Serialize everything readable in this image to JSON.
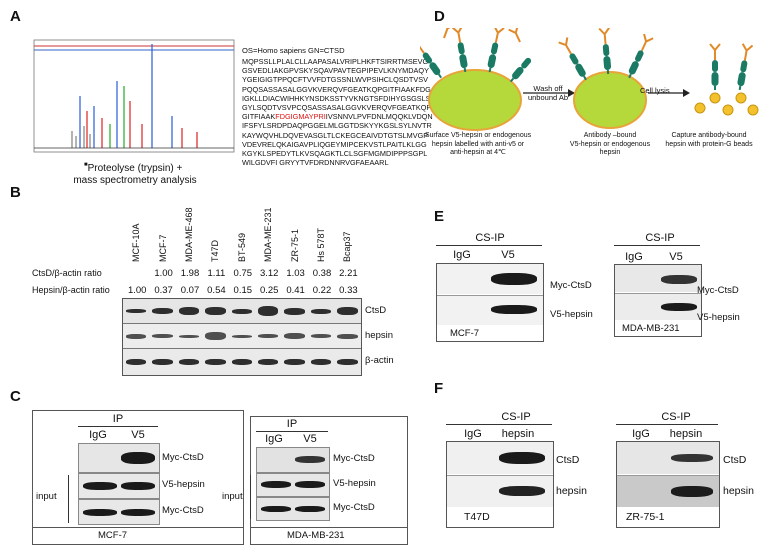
{
  "panels": {
    "A": {
      "label": "A",
      "header": "OS=Homo sapiens GN=CTSD",
      "sequence_lines": [
        "MQPSSLLPLALCLLAAPASALVRIPLHKFTSIRRTMSEVG",
        "GSVEDLIAKGPVSKYSQAVPAVTEGPIPEVLKNYMDAQY",
        "YGEIGIGTPPQCFTVVFDTGSSNLWVPSIHCLQSDTVSV",
        "PQQSASSASALGGVKVERQVFGEATKQPGITFIAAKFDG",
        "IGKLLDIACWIHHKYNSDKSSTYVKNGTSFDIHYGSGSLS",
        "GYLSQDTVSVPCQSASSASALGGVKVERQVFGEATKQP",
        "GITFIAAK",
        "IFSFYLSRDPDAQPGGELMLGGTDSKYYKGSLSYLNVTR",
        "KAYWQVHLDQVEVASGLTLCKEGCEAIVDTGTSLMVGP",
        "VDEVRELQKAIGAVPLIQGEYMIPCEKVSTLPAITLKLGG",
        "KGYKLSPEDYTLKVSQAGKTLCLSGFMGMDIPPPSGPL",
        "WILGDVFI GRYYTVFDRDNNRVGFAEAARL"
      ],
      "hl_line_rest": "IVSNNVLPVFDNLMQQKLVDQN",
      "highlight": "FDGIGMAYPRI",
      "caption_line1": "Proteolyse (trypsin) +",
      "caption_line2": "mass spectrometry analysis"
    },
    "B": {
      "label": "B",
      "cell_lines": [
        "MCF-10A",
        "MCF-7",
        "MDA-ME-468",
        "T47D",
        "BT-549",
        "MDA-ME-231",
        "ZR-75-1",
        "Hs 578T",
        "Bcap37"
      ],
      "ctsd_ratio_label": "CtsD/β-actin ratio",
      "ctsd_ratios": [
        "",
        "1.00",
        "1.98",
        "1.11",
        "0.75",
        "3.12",
        "1.03",
        "0.38",
        "2.21"
      ],
      "hepsin_ratio_label": "Hepsin/β-actin ratio",
      "hepsin_ratios": [
        "1.00",
        "0.37",
        "0.07",
        "0.54",
        "0.15",
        "0.25",
        "0.41",
        "0.22",
        "0.33"
      ],
      "bands": [
        "CtsD",
        "hepsin",
        "β-actin"
      ]
    },
    "C": {
      "label": "C",
      "left": {
        "ip": "IP",
        "cols": [
          "IgG",
          "V5"
        ],
        "rows": [
          "Myc-CtsD",
          "V5-hepsin",
          "Myc-CtsD"
        ],
        "input": "input",
        "cell": "MCF-7"
      },
      "right": {
        "ip": "IP",
        "cols": [
          "IgG",
          "V5"
        ],
        "rows": [
          "Myc-CtsD",
          "V5-hepsin",
          "Myc-CtsD"
        ],
        "input": "input",
        "cell": "MDA-MB-231"
      }
    },
    "D": {
      "label": "D",
      "step1": "Wash off unbound Ab",
      "step2": "Cell lysis",
      "cap1_l1": "Surface V5-hepsin or endogenous",
      "cap1_l2": "hepsin labelled with anti-v5  or",
      "cap1_l3": "anti-hepsin at 4℃",
      "cap2_l1": "Antibody –bound",
      "cap2_l2": "V5-hepsin or endogenous",
      "cap2_l3": "hepsin",
      "cap3_l1": "Capture antibody-bound",
      "cap3_l2": "hepsin with protein-G beads"
    },
    "E": {
      "label": "E",
      "left": {
        "ip": "CS-IP",
        "cols": [
          "IgG",
          "V5"
        ],
        "rows": [
          "Myc-CtsD",
          "V5-hepsin"
        ],
        "cell": "MCF-7"
      },
      "right": {
        "ip": "CS-IP",
        "cols": [
          "IgG",
          "V5"
        ],
        "rows": [
          "Myc-CtsD",
          "V5-hepsin"
        ],
        "cell": "MDA-MB-231"
      }
    },
    "F": {
      "label": "F",
      "left": {
        "ip": "CS-IP",
        "cols": [
          "IgG",
          "hepsin"
        ],
        "rows": [
          "CtsD",
          "hepsin"
        ],
        "cell": "T47D"
      },
      "right": {
        "ip": "CS-IP",
        "cols": [
          "IgG",
          "hepsin"
        ],
        "rows": [
          "CtsD",
          "hepsin"
        ],
        "cell": "ZR-75-1"
      }
    }
  },
  "colors": {
    "cell_green": "#b5d93a",
    "cell_edge": "#e7a43a",
    "antibody": "#1a7a63",
    "bead": "#f2c12b",
    "highlight_red": "#d11111"
  }
}
